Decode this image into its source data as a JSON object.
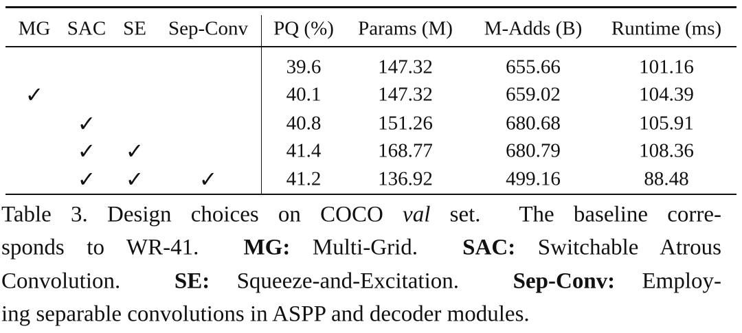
{
  "table": {
    "headers": [
      "MG",
      "SAC",
      "SE",
      "Sep-Conv",
      "PQ (%)",
      "Params (M)",
      "M-Adds (B)",
      "Runtime (ms)"
    ],
    "rows": [
      [
        null,
        null,
        null,
        null,
        39.6,
        147.32,
        655.66,
        101.16
      ],
      [
        "✓",
        null,
        null,
        null,
        40.1,
        147.32,
        659.02,
        104.39
      ],
      [
        null,
        "✓",
        null,
        null,
        40.8,
        151.26,
        680.68,
        105.91
      ],
      [
        null,
        "✓",
        "✓",
        null,
        41.4,
        168.77,
        680.79,
        108.36
      ],
      [
        null,
        "✓",
        "✓",
        "✓",
        41.2,
        136.92,
        499.16,
        88.48
      ]
    ]
  },
  "caption": {
    "lines": [
      [
        "Table 3. Design choices on COCO ",
        {
          "text": "val",
          "style": "italic"
        },
        " set.  The baseline corre-"
      ],
      [
        "sponds to WR-41.  ",
        {
          "text": "MG:",
          "style": "bold"
        },
        " Multi-Grid.  ",
        {
          "text": "SAC:",
          "style": "bold"
        },
        " Switchable Atrous"
      ],
      [
        "Convolution.  ",
        {
          "text": "SE:",
          "style": "bold"
        },
        " Squeeze-and-Excitation.  ",
        {
          "text": "Sep-Conv:",
          "style": "bold"
        },
        " Employ-"
      ],
      [
        "ing separable convolutions in ASPP and decoder modules."
      ]
    ]
  }
}
